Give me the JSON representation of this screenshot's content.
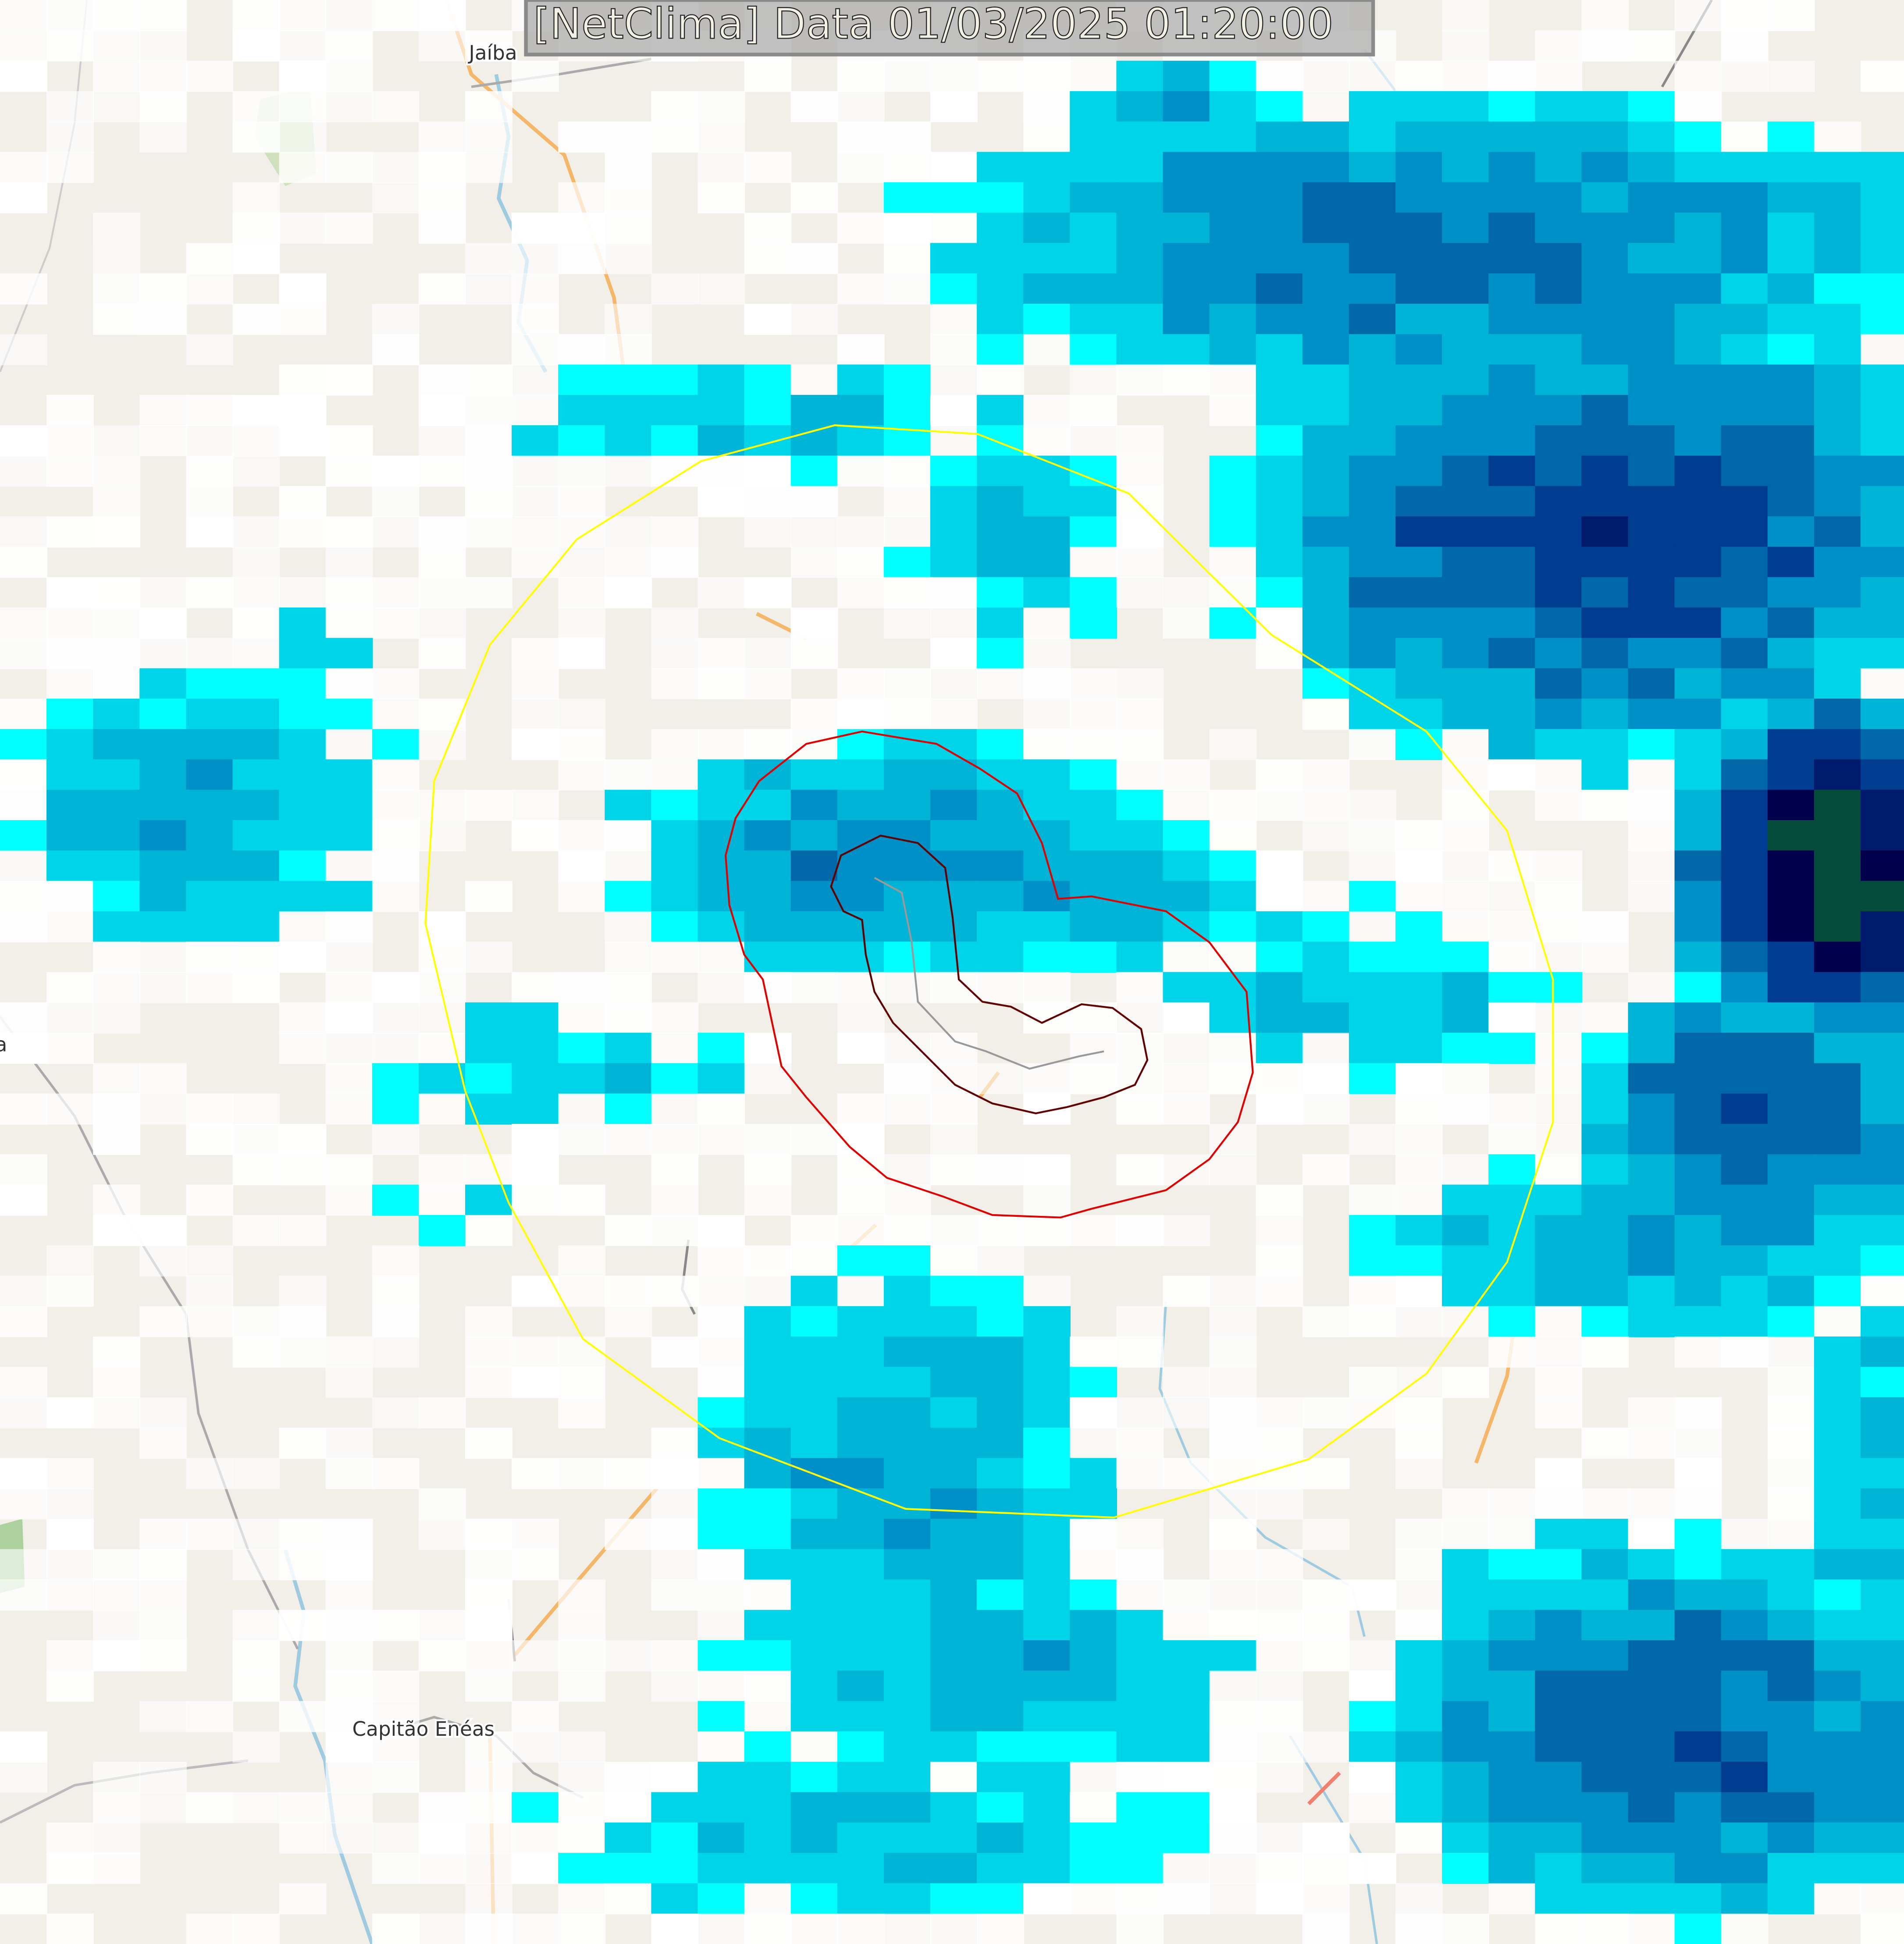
{
  "header": {
    "title": "[NetClima] Data 01/03/2025 01:20:00"
  },
  "places": [
    {
      "name": "Jaíba"
    },
    {
      "name": "Capitão Enéas"
    },
    {
      "name": "a"
    }
  ],
  "overlays": {
    "range_ring_color": "#ffff00",
    "outer_contour_color": "#e00000",
    "inner_contour_color": "#600000",
    "track_color": "#999999"
  },
  "radar_palette": [
    "#ffffff",
    "#00ffff",
    "#00d4e8",
    "#00b4d8",
    "#0090c8",
    "#0068a8",
    "#003c90",
    "#001a6c",
    "#00004c",
    "#064a3c",
    "#00a040",
    "#00c020"
  ]
}
